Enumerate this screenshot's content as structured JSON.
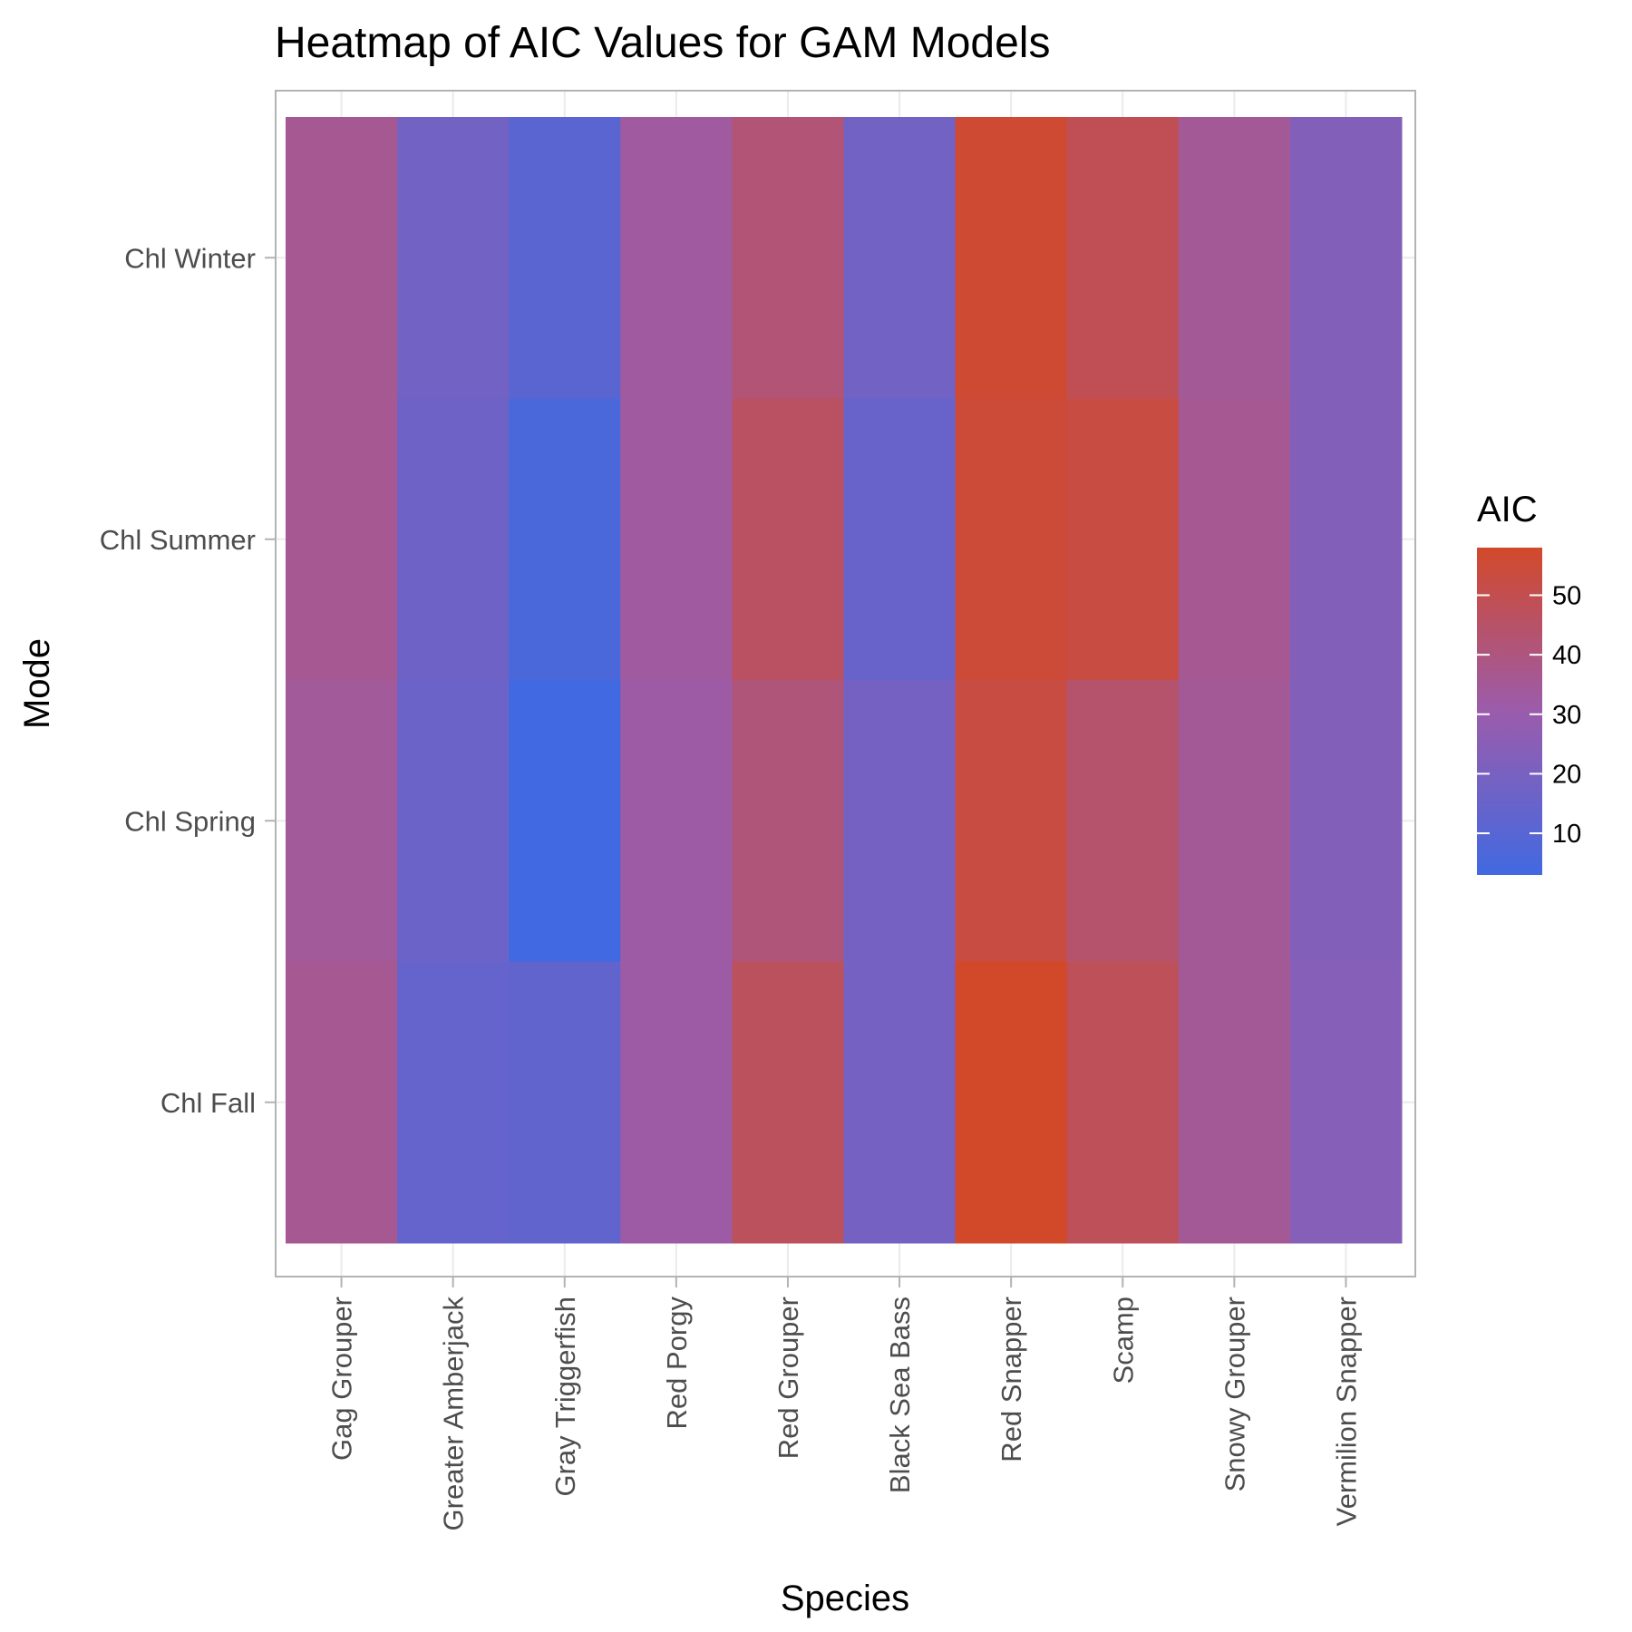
{
  "chart_data": {
    "type": "heatmap",
    "title": "Heatmap of AIC Values for GAM Models",
    "xlabel": "Species",
    "ylabel": "Mode",
    "x": [
      "Gag Grouper",
      "Greater Amberjack",
      "Gray Triggerfish",
      "Red Porgy",
      "Red Grouper",
      "Black Sea Bass",
      "Red Snapper",
      "Scamp",
      "Snowy Grouper",
      "Vermilion Snapper"
    ],
    "y": [
      "Chl Winter",
      "Chl Summer",
      "Chl Spring",
      "Chl Fall"
    ],
    "values": [
      [
        36,
        18,
        11,
        33,
        42,
        18,
        56,
        49,
        35,
        23
      ],
      [
        36,
        17,
        6,
        33,
        46,
        15,
        55,
        53,
        36,
        23
      ],
      [
        34,
        16,
        3,
        32,
        41,
        19,
        53,
        44,
        35,
        23
      ],
      [
        36,
        14,
        13,
        32,
        47,
        19,
        58,
        48,
        35,
        24
      ]
    ],
    "legend": {
      "title": "AIC",
      "ticks": [
        10,
        20,
        30,
        40,
        50
      ],
      "range": [
        3,
        58
      ],
      "position": "right"
    },
    "colors": {
      "low": "#4169E1",
      "mid": "#9B5CAC",
      "high": "#D2492A",
      "panel_border": "#b3b3b3",
      "grid": "#ebebeb"
    },
    "grid": true
  }
}
